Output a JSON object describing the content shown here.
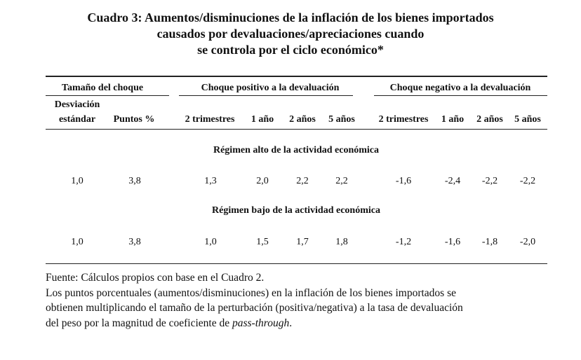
{
  "title": {
    "line1": "Cuadro 3: Aumentos/disminuciones de la inflación de los bienes importados",
    "line2": "causados por devaluaciones/apreciaciones cuando",
    "line3": "se controla por el ciclo económico*"
  },
  "header": {
    "group_shock_size": "Tamaño del choque",
    "group_positive": "Choque positivo a la devaluación",
    "group_negative": "Choque negativo a la devaluación",
    "desv_line1": "Desviación",
    "desv_line2": "estándar",
    "puntos": "Puntos %",
    "periods": [
      "2 trimestres",
      "1 año",
      "2 años",
      "5 años"
    ]
  },
  "regimes": [
    {
      "label": "Régimen alto de la actividad económica",
      "desv": "1,0",
      "puntos": "3,8",
      "positive": [
        "1,3",
        "2,0",
        "2,2",
        "2,2"
      ],
      "negative": [
        "-1,6",
        "-2,4",
        "-2,2",
        "-2,2"
      ]
    },
    {
      "label": "Régimen bajo de la actividad económica",
      "desv": "1,0",
      "puntos": "3,8",
      "positive": [
        "1,0",
        "1,5",
        "1,7",
        "1,8"
      ],
      "negative": [
        "-1,2",
        "-1,6",
        "-1,8",
        "-2,0"
      ]
    }
  ],
  "footnote": {
    "source": "Fuente: Cálculos propios con base en el Cuadro 2.",
    "line1": "Los puntos porcentuales (aumentos/disminuciones) en la inflación de los bienes importados se",
    "line2": "obtienen multiplicando el tamaño de la perturbación (positiva/negativa) a la tasa de devaluación",
    "line3_prefix": "del peso por la magnitud de coeficiente de ",
    "line3_italic": "pass-through",
    "line3_suffix": "."
  }
}
